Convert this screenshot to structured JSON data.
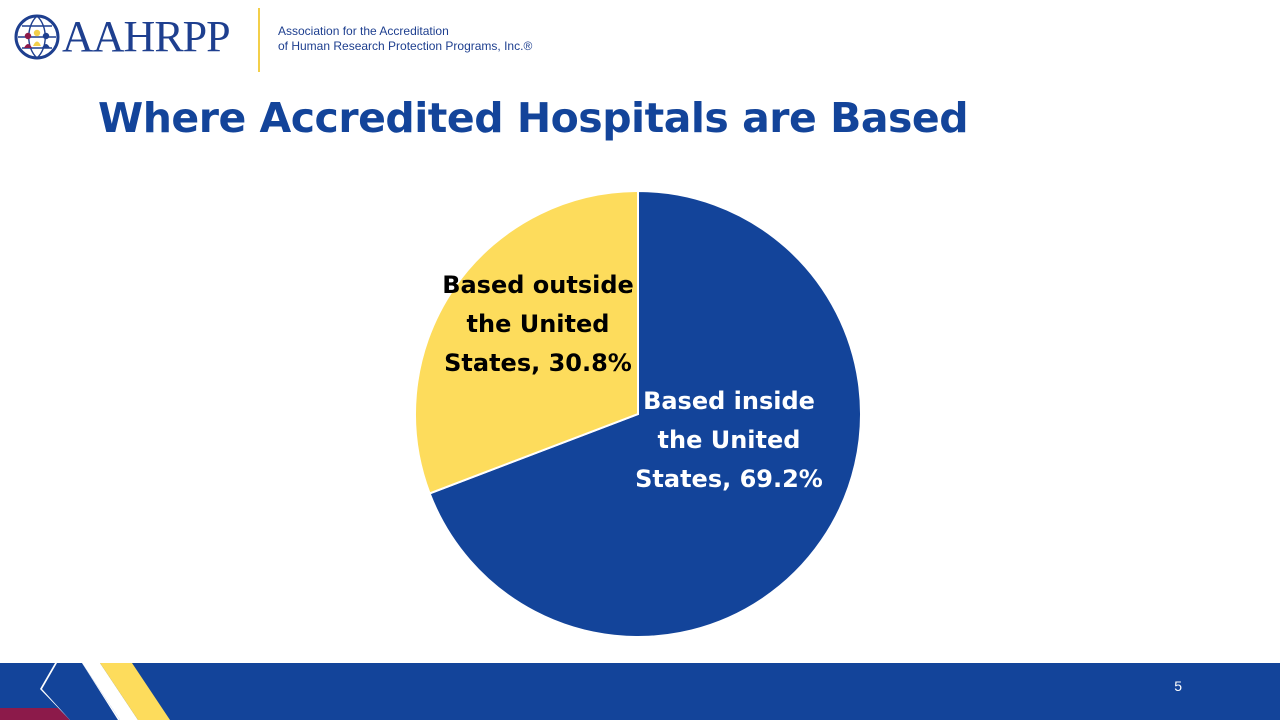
{
  "header": {
    "logo_text": "AAHRPP",
    "tagline_line1": "Association for the Accreditation",
    "tagline_line2": "of Human Research Protection Programs, Inc.®"
  },
  "slide": {
    "title": "Where Accredited Hospitals are Based",
    "page_number": "5"
  },
  "colors": {
    "navy": "#13449a",
    "yellow": "#fddc5c",
    "maroon": "#8c1a4a"
  },
  "chart_data": {
    "type": "pie",
    "start_angle_deg": 0,
    "direction": "clockwise",
    "slices": [
      {
        "label_lines": [
          "Based inside",
          "the United",
          "States, 69.2%"
        ],
        "value": 69.2,
        "color": "#13449a",
        "label_color": "#ffffff"
      },
      {
        "label_lines": [
          "Based outside",
          "the United",
          "States, 30.8%"
        ],
        "value": 30.8,
        "color": "#fddc5c",
        "label_color": "#000000"
      }
    ]
  }
}
